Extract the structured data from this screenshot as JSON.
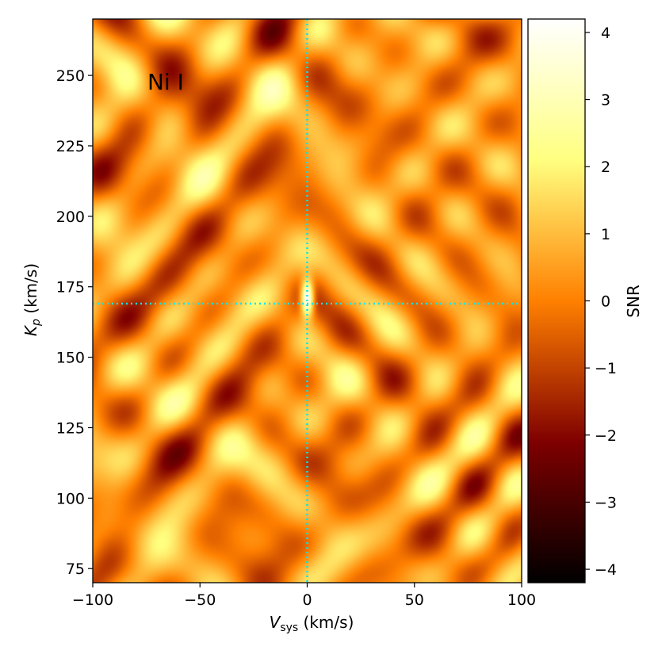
{
  "chart_data": {
    "type": "heatmap",
    "title": "",
    "annotation": "Ni I",
    "xlabel": "V",
    "xlabel_sub": "sys",
    "xlabel_unit": " (km/s)",
    "ylabel": "K",
    "ylabel_sub": "p",
    "ylabel_unit": " (km/s)",
    "xlim": [
      -100,
      100
    ],
    "ylim": [
      70,
      270
    ],
    "x_ticks": [
      -100,
      -50,
      0,
      50,
      100
    ],
    "x_tick_labels": [
      "−100",
      "−50",
      "0",
      "50",
      "100"
    ],
    "y_ticks": [
      75,
      100,
      125,
      150,
      175,
      200,
      225,
      250
    ],
    "y_tick_labels": [
      "75",
      "100",
      "125",
      "150",
      "175",
      "200",
      "225",
      "250"
    ],
    "colorbar": {
      "label": "SNR",
      "range": [
        -4.2,
        4.2
      ],
      "ticks": [
        -4,
        -3,
        -2,
        -1,
        0,
        1,
        2,
        3,
        4
      ],
      "tick_labels": [
        "−4",
        "−3",
        "−2",
        "−1",
        "0",
        "1",
        "2",
        "3",
        "4"
      ],
      "colormap": "afmhot"
    },
    "reference_lines": {
      "vsys": 0,
      "kp": 169
    },
    "peak": {
      "vsys": 0,
      "kp": 171,
      "snr": 4.2
    },
    "line_color": "#00e5ee",
    "annotation_color": "#00e5ee"
  }
}
